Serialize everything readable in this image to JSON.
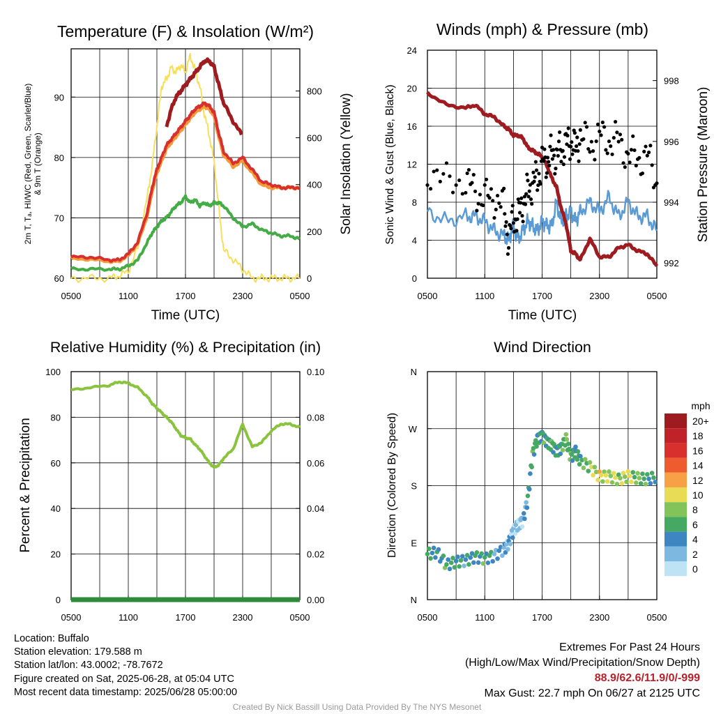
{
  "charts": {
    "temp": {
      "title": "Temperature (F) & Insolation (W/m²)",
      "ylabel_line1": "2m T, Tₐ, HI/WC (Red, Green, Scarlet/Blue)",
      "ylabel_line2": "& 9m T (Orange)",
      "ylabel_right": "Solar Insolation (Yellow)",
      "xlabel": "Time (UTC)",
      "x_ticks": [
        "0500",
        "1100",
        "1700",
        "2300",
        "0500"
      ],
      "y_ticks": [
        "60",
        "70",
        "80",
        "90"
      ],
      "y2_ticks": [
        "0",
        "200",
        "400",
        "600",
        "800"
      ]
    },
    "winds": {
      "title": "Winds (mph) & Pressure (mb)",
      "ylabel": "Sonic Wind & Gust (Blue, Black)",
      "ylabel_right": "Station Pressure (Maroon)",
      "xlabel": "Time (UTC)",
      "x_ticks": [
        "0500",
        "1100",
        "1700",
        "2300",
        "0500"
      ],
      "y_ticks": [
        "0",
        "4",
        "8",
        "12",
        "16",
        "20",
        "24"
      ],
      "y2_ticks": [
        "992",
        "994",
        "996",
        "998"
      ]
    },
    "rh": {
      "title": "Relative Humidity (%) & Precipitation (in)",
      "ylabel": "Percent & Precipitation",
      "x_ticks": [
        "0500",
        "1100",
        "1700",
        "2300",
        "0500"
      ],
      "y_ticks": [
        "0",
        "20",
        "40",
        "60",
        "80",
        "100"
      ],
      "y2_ticks": [
        "0.00",
        "0.02",
        "0.04",
        "0.06",
        "0.08",
        "0.10"
      ]
    },
    "wdir": {
      "title": "Wind Direction",
      "ylabel": "Direction (Colored By Speed)",
      "x_ticks": [
        "0500",
        "1100",
        "1700",
        "2300",
        "0500"
      ],
      "y_ticks": [
        "N",
        "E",
        "S",
        "W",
        "N"
      ],
      "legend_title": "mph",
      "legend_labels": [
        "20+",
        "18",
        "16",
        "14",
        "12",
        "10",
        "8",
        "6",
        "4",
        "2",
        "0"
      ],
      "legend_colors": [
        "#9e1c1f",
        "#c0222a",
        "#d8302d",
        "#ee5b2f",
        "#f7a046",
        "#e8dc56",
        "#82c35a",
        "#45a863",
        "#3d86c2",
        "#7db8e0",
        "#bee3f4"
      ]
    }
  },
  "colors": {
    "air_temp": "#d8302d",
    "nine_m_temp": "#f39b3a",
    "dewpoint": "#44ac44",
    "heat_index": "#9e1c1f",
    "insolation": "#f7df5a",
    "wind": "#5a9bd5",
    "gust": "#000000",
    "pressure": "#9e1c1f",
    "rh": "#8ac43f",
    "precip": "#2e8b3a"
  },
  "chart_data": [
    {
      "type": "line",
      "title": "Temperature (F) & Insolation (W/m²)",
      "xlabel": "Time (UTC)",
      "x": [
        "0500",
        "0700",
        "0900",
        "1000",
        "1100",
        "1200",
        "1300",
        "1330",
        "1400",
        "1430",
        "1500",
        "1530",
        "1600",
        "1630",
        "1700",
        "1730",
        "1800",
        "1830",
        "1900",
        "1930",
        "2000",
        "2030",
        "2100",
        "2200",
        "2300",
        "0000",
        "0100",
        "0200",
        "0300",
        "0400",
        "0500"
      ],
      "ylim": [
        60,
        98
      ],
      "y2lim": [
        0,
        980
      ],
      "series": [
        {
          "name": "2m T",
          "values": [
            63.5,
            63.5,
            63,
            63,
            64,
            66,
            71,
            75,
            78,
            80,
            82,
            83,
            84,
            85,
            86,
            87,
            88,
            88.5,
            89,
            88.5,
            87.5,
            84,
            81,
            79,
            80,
            78,
            76,
            75.5,
            75,
            75,
            75
          ]
        },
        {
          "name": "9m T",
          "values": [
            63.2,
            63.2,
            62.8,
            62.8,
            63.8,
            65.8,
            70.5,
            74.5,
            77.5,
            79.5,
            81.5,
            82.5,
            83.5,
            84.5,
            85.5,
            86.5,
            87.5,
            88,
            88.5,
            88,
            87,
            83.5,
            80.5,
            78.5,
            79.5,
            77.5,
            75.5,
            75,
            75,
            75,
            75
          ]
        },
        {
          "name": "Dewpoint",
          "values": [
            61.5,
            61.5,
            61.5,
            61.5,
            62,
            63,
            66,
            67.5,
            68.5,
            69.5,
            70,
            71,
            72,
            72.5,
            73.5,
            72.5,
            73,
            72,
            72.5,
            72,
            72.5,
            72.5,
            72,
            70,
            68.5,
            69,
            68,
            67.5,
            67,
            67,
            66.5
          ]
        },
        {
          "name": "Heat Index",
          "values": [
            null,
            null,
            null,
            null,
            null,
            null,
            null,
            null,
            null,
            null,
            85,
            88,
            90,
            91,
            92,
            93,
            94,
            95,
            96,
            96,
            95,
            92,
            89,
            86,
            83.5,
            null,
            null,
            null,
            null,
            null,
            null
          ]
        },
        {
          "name": "Solar Insolation",
          "axis": "right",
          "values": [
            0,
            0,
            0,
            10,
            30,
            130,
            350,
            480,
            650,
            820,
            850,
            900,
            880,
            910,
            880,
            950,
            890,
            820,
            700,
            610,
            500,
            300,
            120,
            80,
            40,
            0,
            0,
            0,
            0,
            0,
            0
          ]
        }
      ]
    },
    {
      "type": "line",
      "title": "Winds (mph) & Pressure (mb)",
      "xlabel": "Time (UTC)",
      "x": [
        "0500",
        "0700",
        "0900",
        "1000",
        "1100",
        "1200",
        "1300",
        "1330",
        "1400",
        "1430",
        "1500",
        "1530",
        "1600",
        "1630",
        "1700",
        "1730",
        "1800",
        "1830",
        "1900",
        "1930",
        "2000",
        "2030",
        "2100",
        "2200",
        "2300",
        "0000",
        "0100",
        "0200",
        "0300",
        "0400",
        "0500"
      ],
      "ylim": [
        0,
        24
      ],
      "y2lim": [
        991.5,
        999
      ],
      "series": [
        {
          "name": "Sonic Wind",
          "values": [
            7,
            6,
            6.5,
            6.5,
            6,
            5,
            4.5,
            4,
            5.5,
            4,
            5,
            6,
            5.5,
            5,
            6,
            5.5,
            5.5,
            8,
            6,
            6.5,
            7,
            6,
            7,
            8,
            7,
            8.5,
            6.5,
            8,
            6.5,
            6.5,
            5
          ]
        },
        {
          "name": "Gust",
          "type": "scatter",
          "values": [
            11.5,
            10,
            10.5,
            9,
            8.5,
            8.5,
            7.5,
            4,
            6.5,
            6.5,
            8,
            9,
            10,
            10.5,
            12,
            12.5,
            13,
            13,
            13.5,
            14,
            14.5,
            13.5,
            15,
            14,
            15,
            14.5,
            14.5,
            13,
            12.5,
            13,
            10
          ]
        },
        {
          "name": "Station Pressure",
          "axis": "right",
          "values": [
            997.6,
            997.2,
            997.1,
            997.2,
            996.9,
            996.8,
            996.5,
            996.4,
            996.2,
            996.2,
            996.1,
            995.8,
            995.7,
            995.6,
            995.5,
            995.2,
            994.8,
            994.5,
            993.8,
            993.3,
            992.4,
            992.3,
            992.1,
            992.8,
            992.2,
            992.2,
            992.5,
            992.6,
            992.4,
            992.3,
            991.9
          ]
        }
      ]
    },
    {
      "type": "line",
      "title": "Relative Humidity (%) & Precipitation (in)",
      "x": [
        "0500",
        "0700",
        "0900",
        "1000",
        "1100",
        "1200",
        "1300",
        "1330",
        "1400",
        "1430",
        "1500",
        "1530",
        "1600",
        "1630",
        "1700",
        "1730",
        "1800",
        "1830",
        "1900",
        "1930",
        "2000",
        "2030",
        "2100",
        "2200",
        "2300",
        "0000",
        "0100",
        "0200",
        "0300",
        "0400",
        "0500"
      ],
      "ylim": [
        0,
        100
      ],
      "y2lim": [
        0,
        0.1
      ],
      "series": [
        {
          "name": "Relative Humidity",
          "values": [
            92,
            93,
            94,
            95.5,
            95,
            93,
            89,
            86,
            84,
            82,
            80,
            78,
            75,
            72,
            71,
            70.5,
            68,
            66,
            63,
            60,
            58,
            59,
            62,
            66,
            77,
            67,
            69,
            74,
            77,
            77,
            75.5
          ]
        },
        {
          "name": "Precipitation",
          "axis": "right",
          "values": [
            0,
            0,
            0,
            0,
            0,
            0,
            0,
            0,
            0,
            0,
            0,
            0,
            0,
            0,
            0,
            0,
            0,
            0,
            0,
            0,
            0,
            0,
            0,
            0,
            0,
            0,
            0,
            0,
            0,
            0,
            0
          ]
        }
      ]
    },
    {
      "type": "scatter",
      "title": "Wind Direction",
      "x": [
        "0500",
        "0600",
        "0700",
        "0800",
        "0900",
        "1000",
        "1100",
        "1200",
        "1300",
        "1330",
        "1400",
        "1430",
        "1500",
        "1530",
        "1600",
        "1630",
        "1700",
        "1730",
        "1800",
        "1830",
        "1900",
        "1930",
        "2000",
        "2030",
        "2100",
        "2200",
        "2300",
        "0000",
        "0100",
        "0200",
        "0300",
        "0400",
        "0500"
      ],
      "y_categories": [
        "N",
        "E",
        "S",
        "W",
        "N"
      ],
      "y_degrees": [
        0,
        90,
        180,
        270,
        360
      ],
      "direction_deg": [
        72,
        75,
        55,
        60,
        62,
        68,
        65,
        70,
        80,
        90,
        110,
        120,
        125,
        160,
        230,
        255,
        260,
        250,
        245,
        235,
        240,
        255,
        225,
        235,
        220,
        210,
        195,
        195,
        190,
        195,
        192,
        190,
        194
      ],
      "speed_mph": [
        5,
        4,
        6,
        5,
        4,
        5,
        6,
        4,
        3,
        2,
        2,
        1,
        2,
        4,
        6,
        5,
        6,
        5,
        6,
        5,
        6,
        7,
        6,
        5,
        6,
        8,
        10,
        9,
        8,
        9,
        7,
        6,
        5
      ]
    }
  ],
  "footer": {
    "location": "Location: Buffalo",
    "elevation": "Station elevation: 179.588 m",
    "latlon": "Station lat/lon: 43.0002; -78.7672",
    "created": "Figure created on Sat, 2025-06-28, at 05:04 UTC",
    "recent": "Most recent data timestamp: 2025/06/28 05:00:00",
    "extremes_title": "Extremes For Past 24 Hours",
    "extremes_legend": "(High/Low/Max Wind/Precipitation/Snow Depth)",
    "extremes_values": "88.9/62.6/11.9/0/-999",
    "max_gust": "Max Gust: 22.7 mph On 06/27 at 2125 UTC",
    "credit": "Created By Nick Bassill Using Data Provided By The NYS Mesonet"
  }
}
